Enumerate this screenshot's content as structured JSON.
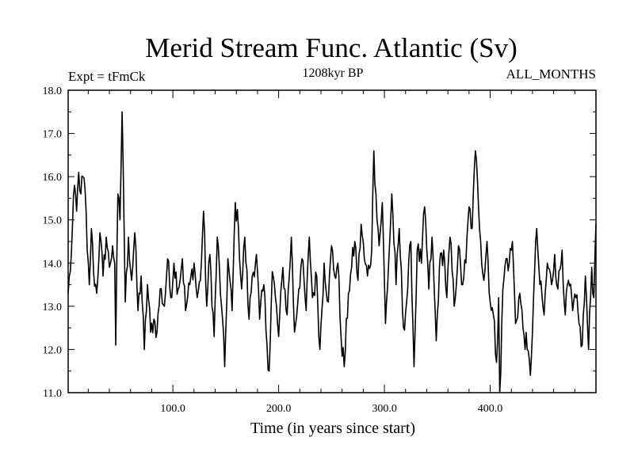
{
  "chart_data": {
    "type": "line",
    "title": "Merid Stream Func. Atlantic (Sv)",
    "subtitle_left": "Expt = tFmCk",
    "subtitle_center": "1208kyr BP",
    "subtitle_right": "ALL_MONTHS",
    "xlabel": "Time (in years since start)",
    "ylabel": "",
    "xlim": [
      1,
      500
    ],
    "ylim": [
      11.0,
      18.0
    ],
    "x_ticks": [
      100,
      200,
      300,
      400
    ],
    "x_tick_labels": [
      "100.0",
      "200.0",
      "300.0",
      "400.0"
    ],
    "y_ticks": [
      11,
      12,
      13,
      14,
      15,
      16,
      17,
      18
    ],
    "y_tick_labels": [
      "11.0",
      "12.0",
      "13.0",
      "14.0",
      "15.0",
      "16.0",
      "17.0",
      "18.0"
    ],
    "grid": false,
    "series": [
      {
        "name": "Merid Stream Func. Atlantic",
        "anchors": [
          [
            1,
            13.3
          ],
          [
            4,
            14.2
          ],
          [
            7,
            15.8
          ],
          [
            9,
            15.2
          ],
          [
            11,
            16.1
          ],
          [
            13,
            15.6
          ],
          [
            15,
            16.0
          ],
          [
            17,
            15.7
          ],
          [
            19,
            14.3
          ],
          [
            21,
            13.5
          ],
          [
            23,
            14.8
          ],
          [
            25,
            13.8
          ],
          [
            28,
            13.3
          ],
          [
            31,
            14.7
          ],
          [
            34,
            13.7
          ],
          [
            37,
            14.6
          ],
          [
            40,
            13.9
          ],
          [
            43,
            14.4
          ],
          [
            45,
            14.0
          ],
          [
            46,
            12.1
          ],
          [
            48,
            15.6
          ],
          [
            50,
            15.0
          ],
          [
            52,
            17.5
          ],
          [
            53,
            16.3
          ],
          [
            55,
            13.1
          ],
          [
            58,
            14.6
          ],
          [
            61,
            13.6
          ],
          [
            64,
            14.7
          ],
          [
            67,
            12.9
          ],
          [
            70,
            13.7
          ],
          [
            73,
            12.0
          ],
          [
            76,
            13.5
          ],
          [
            79,
            12.4
          ],
          [
            82,
            12.7
          ],
          [
            85,
            12.4
          ],
          [
            88,
            13.4
          ],
          [
            92,
            13.0
          ],
          [
            95,
            14.1
          ],
          [
            98,
            13.2
          ],
          [
            101,
            14.0
          ],
          [
            105,
            13.4
          ],
          [
            109,
            14.1
          ],
          [
            112,
            12.9
          ],
          [
            116,
            13.5
          ],
          [
            120,
            14.0
          ],
          [
            123,
            13.2
          ],
          [
            126,
            13.6
          ],
          [
            129,
            15.2
          ],
          [
            132,
            13.0
          ],
          [
            135,
            14.2
          ],
          [
            139,
            12.3
          ],
          [
            142,
            14.6
          ],
          [
            146,
            13.0
          ],
          [
            149,
            11.6
          ],
          [
            152,
            14.1
          ],
          [
            156,
            12.9
          ],
          [
            159,
            15.4
          ],
          [
            162,
            14.8
          ],
          [
            165,
            13.4
          ],
          [
            168,
            14.6
          ],
          [
            172,
            12.7
          ],
          [
            175,
            13.7
          ],
          [
            179,
            14.2
          ],
          [
            182,
            12.7
          ],
          [
            186,
            13.5
          ],
          [
            189,
            12.1
          ],
          [
            191,
            11.5
          ],
          [
            194,
            13.8
          ],
          [
            197,
            13.2
          ],
          [
            200,
            12.3
          ],
          [
            204,
            13.9
          ],
          [
            208,
            12.8
          ],
          [
            212,
            14.6
          ],
          [
            215,
            12.4
          ],
          [
            219,
            13.4
          ],
          [
            222,
            14.1
          ],
          [
            226,
            12.9
          ],
          [
            229,
            14.6
          ],
          [
            232,
            13.2
          ],
          [
            236,
            13.7
          ],
          [
            239,
            12.0
          ],
          [
            243,
            14.0
          ],
          [
            247,
            13.1
          ],
          [
            250,
            14.4
          ],
          [
            253,
            13.7
          ],
          [
            256,
            14.0
          ],
          [
            259,
            12.3
          ],
          [
            262,
            11.6
          ],
          [
            266,
            13.3
          ],
          [
            269,
            13.9
          ],
          [
            272,
            14.5
          ],
          [
            275,
            13.6
          ],
          [
            278,
            14.9
          ],
          [
            281,
            14.1
          ],
          [
            284,
            13.7
          ],
          [
            288,
            14.3
          ],
          [
            290,
            16.6
          ],
          [
            292,
            15.6
          ],
          [
            295,
            14.4
          ],
          [
            298,
            15.4
          ],
          [
            301,
            12.6
          ],
          [
            304,
            14.0
          ],
          [
            307,
            15.6
          ],
          [
            311,
            13.5
          ],
          [
            314,
            14.8
          ],
          [
            318,
            12.5
          ],
          [
            321,
            13.1
          ],
          [
            325,
            14.5
          ],
          [
            328,
            11.6
          ],
          [
            331,
            14.3
          ],
          [
            335,
            14.0
          ],
          [
            338,
            15.3
          ],
          [
            342,
            13.4
          ],
          [
            345,
            14.6
          ],
          [
            349,
            12.2
          ],
          [
            352,
            13.9
          ],
          [
            356,
            14.3
          ],
          [
            359,
            13.2
          ],
          [
            362,
            14.6
          ],
          [
            366,
            13.0
          ],
          [
            370,
            14.4
          ],
          [
            373,
            13.5
          ],
          [
            377,
            14.0
          ],
          [
            380,
            15.3
          ],
          [
            383,
            14.8
          ],
          [
            386,
            16.6
          ],
          [
            388,
            15.9
          ],
          [
            391,
            14.5
          ],
          [
            394,
            13.6
          ],
          [
            397,
            14.5
          ],
          [
            400,
            13.1
          ],
          [
            403,
            12.8
          ],
          [
            406,
            11.7
          ],
          [
            408,
            13.2
          ],
          [
            409,
            10.7
          ],
          [
            412,
            13.4
          ],
          [
            415,
            14.1
          ],
          [
            418,
            14.0
          ],
          [
            421,
            14.5
          ],
          [
            424,
            12.6
          ],
          [
            428,
            13.3
          ],
          [
            431,
            12.5
          ],
          [
            435,
            12.0
          ],
          [
            438,
            11.4
          ],
          [
            441,
            13.2
          ],
          [
            444,
            14.8
          ],
          [
            447,
            13.5
          ],
          [
            451,
            12.8
          ],
          [
            454,
            14.0
          ],
          [
            458,
            13.5
          ],
          [
            461,
            14.2
          ],
          [
            464,
            13.4
          ],
          [
            468,
            14.3
          ],
          [
            471,
            12.8
          ],
          [
            474,
            13.6
          ],
          [
            478,
            12.9
          ],
          [
            481,
            13.2
          ],
          [
            484,
            12.6
          ],
          [
            487,
            12.1
          ],
          [
            490,
            13.7
          ],
          [
            493,
            12.0
          ],
          [
            496,
            13.9
          ],
          [
            498,
            13.2
          ],
          [
            500,
            14.9
          ]
        ]
      }
    ]
  }
}
